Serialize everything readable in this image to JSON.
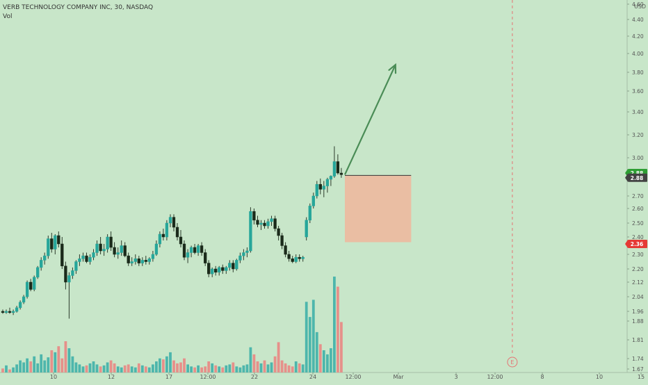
{
  "header": {
    "title": "VERB TECHNOLOGY COMPANY INC, 30, NASDAQ",
    "volume_label": "Vol"
  },
  "colors": {
    "background": "#c8e6c9",
    "up": "#26a69a",
    "down": "#ef5350",
    "candle_body": "#1a2a1a",
    "up_volume": "#4db6ac",
    "down_volume": "#e6908a",
    "arrow": "#4a8c56",
    "risk_box": "#f2b49a",
    "badge_green": "#2e9e34",
    "badge_dark": "#424242",
    "badge_red": "#e53935",
    "earnings": "#e57373"
  },
  "chart_data": {
    "type": "candlestick",
    "currency": "USD",
    "price_axis_ticks": [
      "4.60",
      "4.40",
      "4.20",
      "4.00",
      "3.80",
      "3.60",
      "3.40",
      "3.20",
      "3.00",
      "2.88",
      "2.80",
      "2.70",
      "2.60",
      "2.50",
      "2.40",
      "2.30",
      "2.20",
      "2.12",
      "2.04",
      "1.96",
      "1.88",
      "1.81",
      "1.74",
      "1.67"
    ],
    "time_axis_ticks": [
      "10",
      "12",
      "17",
      "12:00",
      "22",
      "24",
      "12:00",
      "Mar",
      "3",
      "12:00",
      "8",
      "10",
      "15"
    ],
    "price_badges": [
      {
        "label": "2.88",
        "value": 2.88,
        "color": "green"
      },
      {
        "label": "2.88",
        "value": 2.82,
        "color": "dark"
      },
      {
        "label": "2.36",
        "value": 2.36,
        "color": "red"
      }
    ],
    "candles": [
      [
        1.96,
        1.97,
        1.94,
        1.95
      ],
      [
        1.95,
        1.97,
        1.94,
        1.96
      ],
      [
        1.96,
        1.98,
        1.94,
        1.95
      ],
      [
        1.95,
        1.97,
        1.93,
        1.96
      ],
      [
        1.96,
        1.99,
        1.95,
        1.98
      ],
      [
        1.98,
        2.02,
        1.97,
        2.01
      ],
      [
        2.01,
        2.05,
        2.0,
        2.04
      ],
      [
        2.04,
        2.13,
        2.03,
        2.12
      ],
      [
        2.12,
        2.14,
        2.07,
        2.08
      ],
      [
        2.08,
        2.16,
        2.07,
        2.15
      ],
      [
        2.15,
        2.22,
        2.14,
        2.21
      ],
      [
        2.21,
        2.28,
        2.19,
        2.26
      ],
      [
        2.26,
        2.31,
        2.23,
        2.29
      ],
      [
        2.29,
        2.41,
        2.27,
        2.39
      ],
      [
        2.39,
        2.43,
        2.31,
        2.33
      ],
      [
        2.33,
        2.42,
        2.3,
        2.41
      ],
      [
        2.41,
        2.44,
        2.34,
        2.36
      ],
      [
        2.36,
        2.4,
        2.2,
        2.22
      ],
      [
        2.22,
        2.25,
        2.08,
        2.12
      ],
      [
        2.12,
        2.18,
        1.9,
        2.16
      ],
      [
        2.16,
        2.21,
        2.14,
        2.19
      ],
      [
        2.19,
        2.26,
        2.17,
        2.25
      ],
      [
        2.25,
        2.3,
        2.22,
        2.27
      ],
      [
        2.27,
        2.31,
        2.25,
        2.29
      ],
      [
        2.29,
        2.31,
        2.24,
        2.25
      ],
      [
        2.25,
        2.3,
        2.23,
        2.28
      ],
      [
        2.28,
        2.33,
        2.26,
        2.31
      ],
      [
        2.31,
        2.38,
        2.29,
        2.36
      ],
      [
        2.36,
        2.4,
        2.3,
        2.32
      ],
      [
        2.32,
        2.36,
        2.29,
        2.33
      ],
      [
        2.33,
        2.42,
        2.31,
        2.4
      ],
      [
        2.4,
        2.44,
        2.32,
        2.34
      ],
      [
        2.34,
        2.37,
        2.28,
        2.3
      ],
      [
        2.3,
        2.34,
        2.27,
        2.31
      ],
      [
        2.31,
        2.38,
        2.29,
        2.35
      ],
      [
        2.35,
        2.37,
        2.28,
        2.29
      ],
      [
        2.29,
        2.31,
        2.22,
        2.24
      ],
      [
        2.24,
        2.28,
        2.22,
        2.25
      ],
      [
        2.25,
        2.3,
        2.23,
        2.27
      ],
      [
        2.27,
        2.29,
        2.22,
        2.24
      ],
      [
        2.24,
        2.28,
        2.22,
        2.26
      ],
      [
        2.26,
        2.29,
        2.23,
        2.25
      ],
      [
        2.25,
        2.28,
        2.23,
        2.27
      ],
      [
        2.27,
        2.32,
        2.25,
        2.3
      ],
      [
        2.3,
        2.38,
        2.29,
        2.36
      ],
      [
        2.36,
        2.44,
        2.34,
        2.42
      ],
      [
        2.42,
        2.46,
        2.38,
        2.4
      ],
      [
        2.4,
        2.52,
        2.38,
        2.5
      ],
      [
        2.5,
        2.56,
        2.47,
        2.54
      ],
      [
        2.54,
        2.56,
        2.44,
        2.47
      ],
      [
        2.47,
        2.5,
        2.38,
        2.4
      ],
      [
        2.4,
        2.45,
        2.34,
        2.36
      ],
      [
        2.36,
        2.38,
        2.26,
        2.28
      ],
      [
        2.28,
        2.33,
        2.24,
        2.31
      ],
      [
        2.31,
        2.35,
        2.28,
        2.34
      ],
      [
        2.34,
        2.36,
        2.3,
        2.31
      ],
      [
        2.31,
        2.36,
        2.29,
        2.35
      ],
      [
        2.35,
        2.37,
        2.29,
        2.31
      ],
      [
        2.31,
        2.33,
        2.22,
        2.24
      ],
      [
        2.24,
        2.26,
        2.15,
        2.17
      ],
      [
        2.17,
        2.21,
        2.15,
        2.2
      ],
      [
        2.2,
        2.22,
        2.16,
        2.18
      ],
      [
        2.18,
        2.22,
        2.16,
        2.21
      ],
      [
        2.21,
        2.23,
        2.17,
        2.19
      ],
      [
        2.19,
        2.22,
        2.17,
        2.21
      ],
      [
        2.21,
        2.26,
        2.19,
        2.24
      ],
      [
        2.24,
        2.26,
        2.18,
        2.2
      ],
      [
        2.2,
        2.27,
        2.19,
        2.26
      ],
      [
        2.26,
        2.31,
        2.24,
        2.29
      ],
      [
        2.29,
        2.33,
        2.26,
        2.31
      ],
      [
        2.31,
        2.34,
        2.28,
        2.32
      ],
      [
        2.32,
        2.61,
        2.31,
        2.58
      ],
      [
        2.58,
        2.6,
        2.49,
        2.52
      ],
      [
        2.52,
        2.55,
        2.47,
        2.49
      ],
      [
        2.49,
        2.52,
        2.45,
        2.5
      ],
      [
        2.5,
        2.52,
        2.46,
        2.48
      ],
      [
        2.48,
        2.53,
        2.46,
        2.51
      ],
      [
        2.51,
        2.55,
        2.48,
        2.53
      ],
      [
        2.53,
        2.55,
        2.44,
        2.46
      ],
      [
        2.46,
        2.48,
        2.38,
        2.41
      ],
      [
        2.41,
        2.43,
        2.33,
        2.35
      ],
      [
        2.35,
        2.37,
        2.28,
        2.3
      ],
      [
        2.3,
        2.32,
        2.25,
        2.27
      ],
      [
        2.27,
        2.29,
        2.24,
        2.25
      ],
      [
        2.25,
        2.3,
        2.24,
        2.28
      ],
      [
        2.28,
        2.3,
        2.25,
        2.27
      ],
      [
        2.27,
        2.29,
        2.25,
        2.28
      ],
      [
        2.4,
        2.54,
        2.38,
        2.52
      ],
      [
        2.52,
        2.64,
        2.5,
        2.62
      ],
      [
        2.62,
        2.72,
        2.6,
        2.7
      ],
      [
        2.7,
        2.79,
        2.68,
        2.77
      ],
      [
        2.77,
        2.81,
        2.71,
        2.74
      ],
      [
        2.74,
        2.79,
        2.69,
        2.76
      ],
      [
        2.76,
        2.82,
        2.72,
        2.8
      ],
      [
        2.8,
        2.85,
        2.76,
        2.84
      ],
      [
        2.84,
        3.1,
        2.82,
        2.97
      ],
      [
        2.97,
        3.03,
        2.86,
        2.88
      ],
      [
        2.88,
        2.92,
        2.82,
        2.86
      ]
    ],
    "volumes": [
      4,
      7,
      3,
      5,
      8,
      12,
      10,
      14,
      11,
      16,
      9,
      18,
      12,
      15,
      22,
      20,
      26,
      14,
      31,
      24,
      16,
      10,
      8,
      6,
      7,
      9,
      11,
      8,
      6,
      7,
      10,
      12,
      9,
      6,
      5,
      7,
      8,
      6,
      5,
      9,
      7,
      6,
      5,
      8,
      11,
      14,
      13,
      16,
      20,
      12,
      9,
      10,
      14,
      8,
      6,
      5,
      7,
      5,
      6,
      11,
      9,
      7,
      6,
      5,
      7,
      8,
      10,
      6,
      5,
      7,
      8,
      25,
      18,
      11,
      9,
      12,
      8,
      10,
      16,
      30,
      12,
      9,
      7,
      6,
      11,
      9,
      8,
      70,
      55,
      72,
      40,
      28,
      22,
      18,
      24,
      95,
      85,
      50
    ],
    "annotations": {
      "arrow": {
        "from": {
          "bar": 98,
          "price": 2.86
        },
        "to": {
          "bar": 112.5,
          "price": 3.88
        }
      },
      "risk_box": {
        "from_bar": 98,
        "to_bar": 117,
        "top": 2.85,
        "bottom": 2.37
      },
      "event_marker": {
        "label": "E",
        "bar": 146
      }
    }
  }
}
